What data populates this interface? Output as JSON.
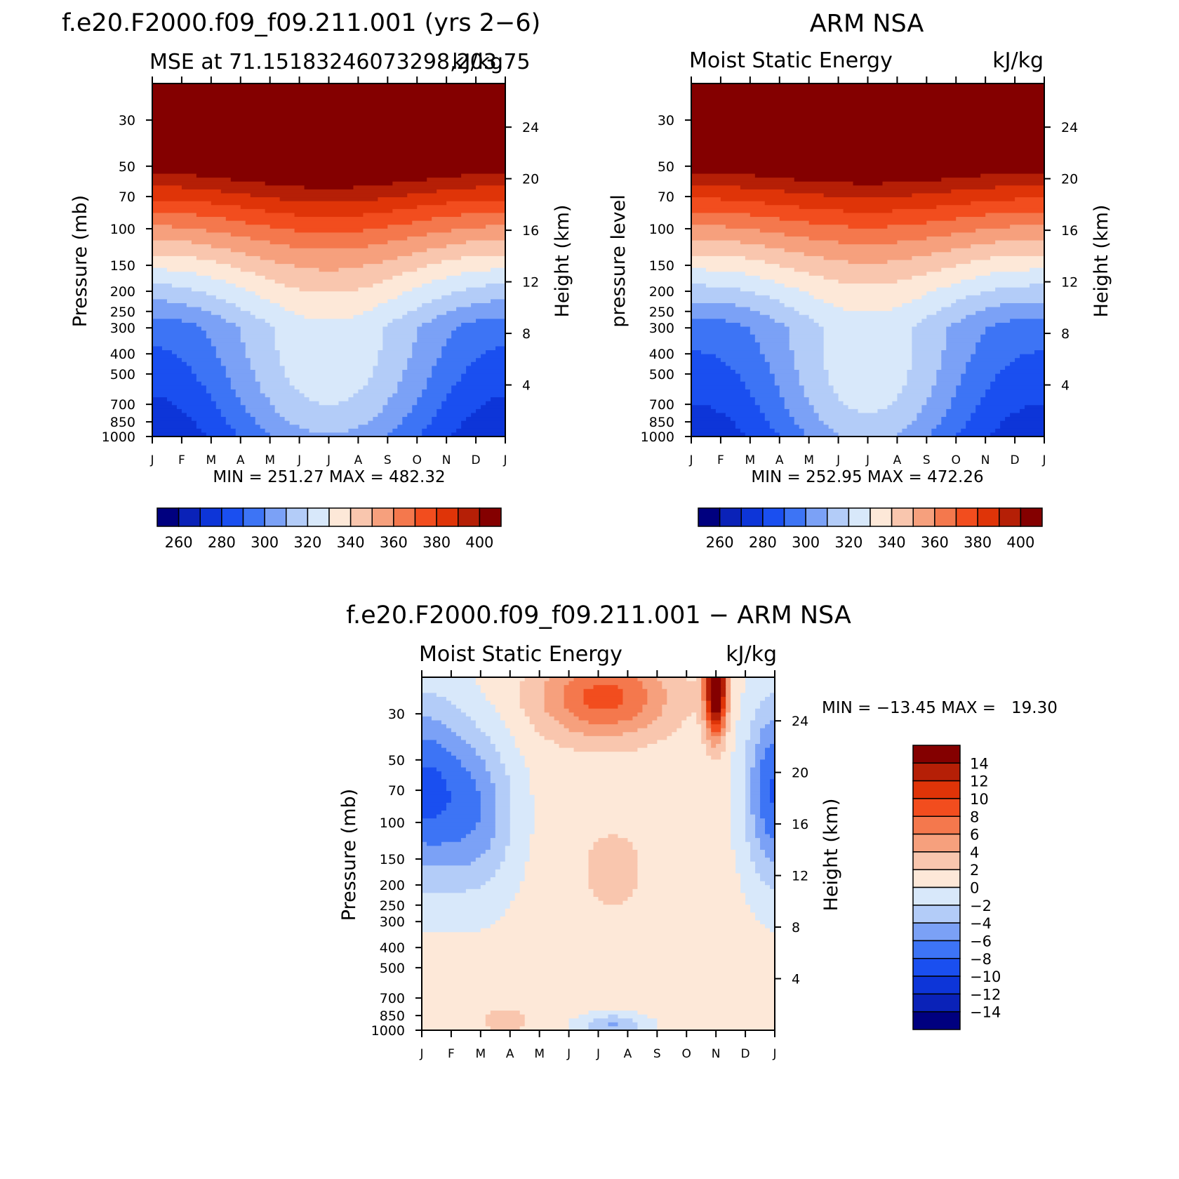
{
  "months": [
    "J",
    "F",
    "M",
    "A",
    "M",
    "J",
    "J",
    "A",
    "S",
    "O",
    "N",
    "D",
    "J"
  ],
  "palettes": {
    "mse": [
      "#00007f",
      "#0a22b8",
      "#0d35d8",
      "#1a4ff0",
      "#3d74f5",
      "#7ba1f6",
      "#b3ccf8",
      "#d8e8fa",
      "#fde8d8",
      "#f9c6ae",
      "#f6a07d",
      "#f4784d",
      "#f24d1e",
      "#df3408",
      "#b51f06",
      "#840000"
    ],
    "diff": [
      "#00007f",
      "#0a22b8",
      "#0d35d8",
      "#1a4ff0",
      "#3d74f5",
      "#7ba1f6",
      "#b3ccf8",
      "#d8e8fa",
      "#fde8d8",
      "#f9c6ae",
      "#f6a07d",
      "#f4784d",
      "#f24d1e",
      "#df3408",
      "#b51f06",
      "#840000"
    ]
  },
  "chart_data": [
    {
      "type": "heatmap",
      "panel": "model",
      "title": "f.e20.F2000.f09_f09.211.001 (yrs 2−6)",
      "subtitle_left": "MSE at 71.15183246073298,203.75",
      "subtitle_right": "kJ/kg",
      "ylabel": "Pressure (mb)",
      "ylabel_right": "Height (km)",
      "x": [
        "J",
        "F",
        "M",
        "A",
        "M",
        "J",
        "J",
        "A",
        "S",
        "O",
        "N",
        "D",
        "J"
      ],
      "pressure_ticks": [
        30,
        50,
        70,
        100,
        150,
        200,
        250,
        300,
        400,
        500,
        700,
        850,
        1000
      ],
      "height_ticks": [
        4,
        8,
        12,
        16,
        20,
        24
      ],
      "ylim_mb": [
        1000,
        20
      ],
      "stats": "MIN = 251.27 MAX = 482.32",
      "colorbar": {
        "levels": [
          250,
          260,
          270,
          280,
          290,
          300,
          310,
          320,
          330,
          340,
          350,
          360,
          370,
          380,
          390,
          400
        ],
        "labels": [
          260,
          280,
          300,
          320,
          340,
          360,
          380,
          400
        ]
      }
    },
    {
      "type": "heatmap",
      "panel": "obs",
      "title": "ARM NSA",
      "subtitle_left": "Moist Static Energy",
      "subtitle_right": "kJ/kg",
      "ylabel": "pressure level",
      "ylabel_right": "Height (km)",
      "x": [
        "J",
        "F",
        "M",
        "A",
        "M",
        "J",
        "J",
        "A",
        "S",
        "O",
        "N",
        "D",
        "J"
      ],
      "pressure_ticks": [
        30,
        50,
        70,
        100,
        150,
        200,
        250,
        300,
        400,
        500,
        700,
        850,
        1000
      ],
      "height_ticks": [
        4,
        8,
        12,
        16,
        20,
        24
      ],
      "ylim_mb": [
        1000,
        20
      ],
      "stats": "MIN = 252.95 MAX = 472.26",
      "colorbar": {
        "levels": [
          250,
          260,
          270,
          280,
          290,
          300,
          310,
          320,
          330,
          340,
          350,
          360,
          370,
          380,
          390,
          400
        ],
        "labels": [
          260,
          280,
          300,
          320,
          340,
          360,
          380,
          400
        ]
      }
    },
    {
      "type": "heatmap",
      "panel": "diff",
      "title": "f.e20.F2000.f09_f09.211.001 − ARM NSA",
      "subtitle_left": "Moist Static Energy",
      "subtitle_right": "kJ/kg",
      "ylabel": "Pressure (mb)",
      "ylabel_right": "Height (km)",
      "x": [
        "J",
        "F",
        "M",
        "A",
        "M",
        "J",
        "J",
        "A",
        "S",
        "O",
        "N",
        "D",
        "J"
      ],
      "pressure_ticks": [
        30,
        50,
        70,
        100,
        150,
        200,
        250,
        300,
        400,
        500,
        700,
        850,
        1000
      ],
      "height_ticks": [
        4,
        8,
        12,
        16,
        20,
        24
      ],
      "ylim_mb": [
        1000,
        20
      ],
      "stats": "MIN = −13.45 MAX =   19.30",
      "colorbar": {
        "labels": [
          "14",
          "12",
          "10",
          "8",
          "6",
          "4",
          "2",
          "0",
          "−2",
          "−4",
          "−6",
          "−8",
          "−10",
          "−12",
          "−14"
        ]
      }
    }
  ]
}
